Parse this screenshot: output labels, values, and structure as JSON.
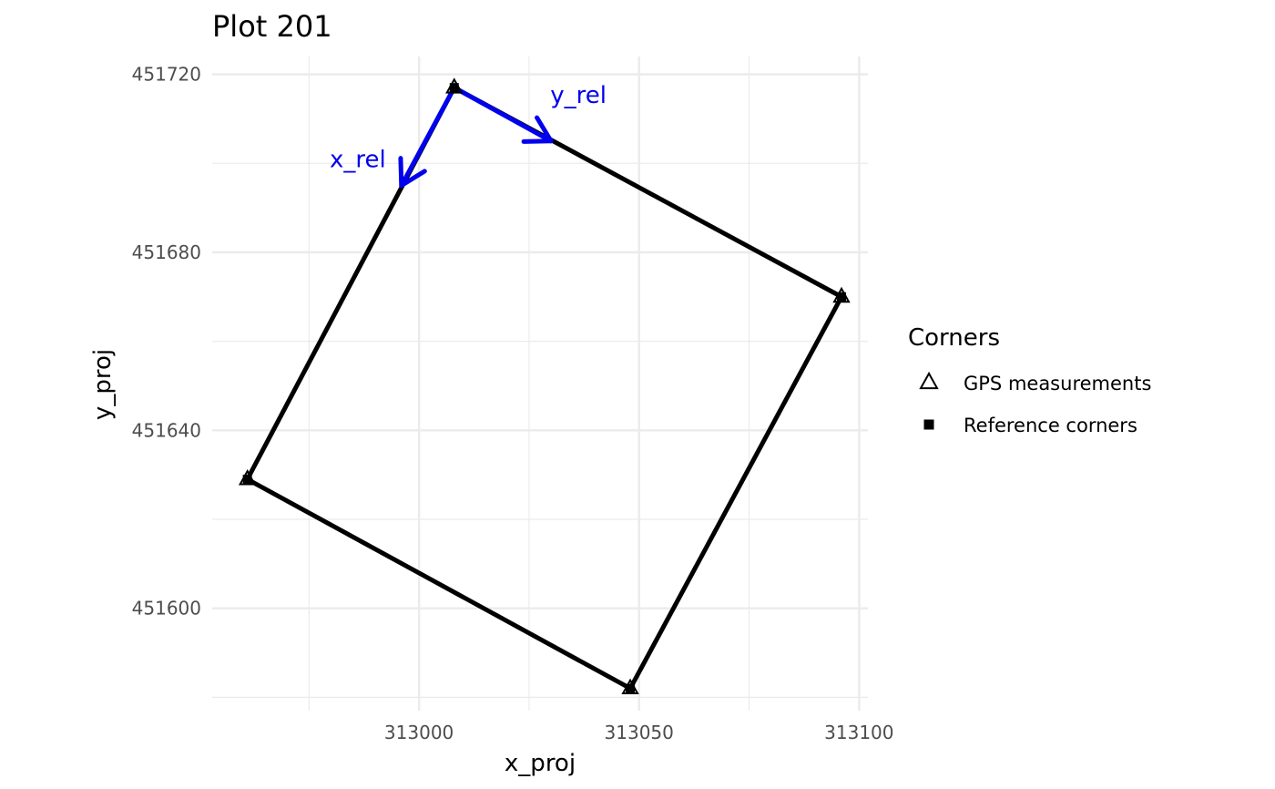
{
  "chart_data": {
    "type": "line",
    "title": "Plot 201",
    "xlabel": "x_proj",
    "ylabel": "y_proj",
    "xlim": [
      312953,
      313102
    ],
    "ylim": [
      451577,
      451724
    ],
    "x_ticks": [
      313000,
      313050,
      313100
    ],
    "x_tick_labels": [
      "313000",
      "313050",
      "313100"
    ],
    "y_ticks": [
      451600,
      451640,
      451680,
      451720
    ],
    "y_tick_labels": [
      "451600",
      "451640",
      "451680",
      "451720"
    ],
    "x_minor_ticks": [
      312975,
      313025,
      313075
    ],
    "y_minor_ticks": [
      451580,
      451620,
      451660,
      451700
    ],
    "grid": true,
    "polygon": {
      "name": "Plot outline",
      "points": [
        {
          "x": 313008,
          "y": 451717
        },
        {
          "x": 313096,
          "y": 451670
        },
        {
          "x": 313048,
          "y": 451582
        },
        {
          "x": 312961,
          "y": 451629
        }
      ]
    },
    "series": [
      {
        "name": "GPS measurements",
        "shape": "triangle-open",
        "points": [
          {
            "x": 313008,
            "y": 451717
          },
          {
            "x": 313096,
            "y": 451670
          },
          {
            "x": 313048,
            "y": 451582
          },
          {
            "x": 312961,
            "y": 451629
          }
        ]
      },
      {
        "name": "Reference corners",
        "shape": "square-filled",
        "points": [
          {
            "x": 313008,
            "y": 451717
          },
          {
            "x": 313096,
            "y": 451670
          },
          {
            "x": 313048,
            "y": 451582
          },
          {
            "x": 312961,
            "y": 451629
          }
        ]
      }
    ],
    "arrows": [
      {
        "label": "x_rel",
        "from": {
          "x": 313008,
          "y": 451717
        },
        "to": {
          "x": 312996,
          "y": 451695
        },
        "color": "#0000ee"
      },
      {
        "label": "y_rel",
        "from": {
          "x": 313008,
          "y": 451717
        },
        "to": {
          "x": 313030,
          "y": 451705
        },
        "color": "#0000ee"
      }
    ],
    "legend": {
      "title": "Corners",
      "position": "right",
      "entries": [
        "GPS measurements",
        "Reference corners"
      ]
    }
  }
}
